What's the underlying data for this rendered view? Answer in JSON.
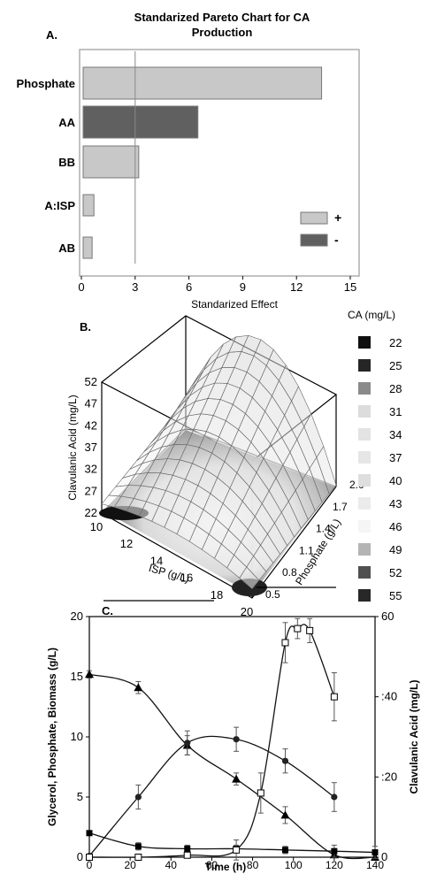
{
  "panels": {
    "a": {
      "letter": "A.",
      "chart_data": {
        "type": "bar",
        "orientation": "horizontal",
        "title": "Standarized Pareto Chart for CA Production",
        "title_lines": [
          "Standarized Pareto Chart for CA",
          "Production"
        ],
        "xlabel": "Standarized Effect",
        "xlim": [
          0,
          15
        ],
        "xticks": [
          "0",
          "3",
          "6",
          "9",
          "12",
          "15"
        ],
        "categories": [
          "Phosphate",
          "AA",
          "BB",
          "A:ISP",
          "AB"
        ],
        "values": [
          13.4,
          6.5,
          3.2,
          0.7,
          0.6
        ],
        "signs": [
          "+",
          "-",
          "+",
          "+",
          "+"
        ],
        "reference_line": 3.0,
        "legend": [
          {
            "label": "+",
            "color": "#c8c8c8"
          },
          {
            "label": "-",
            "color": "#606060"
          }
        ],
        "colors": {
          "positive": "#c8c8c8",
          "negative": "#606060"
        }
      }
    },
    "b": {
      "letter": "B.",
      "chart_data": {
        "type": "surface3d",
        "zlabel": "Clavulanic Acid (mg/L)",
        "xlabel": "ISP (g/L)",
        "ylabel": "Phosphate (g/L)",
        "zticks": [
          "22",
          "27",
          "32",
          "37",
          "42",
          "47",
          "52"
        ],
        "xticks": [
          "10",
          "12",
          "14",
          "16",
          "18",
          "20"
        ],
        "yticks": [
          "0.5",
          "0.8",
          "1.1",
          "1.4",
          "1.7",
          "2.0"
        ],
        "legend_title": "CA (mg/L)",
        "legend": [
          {
            "label": "22",
            "color": "#101010"
          },
          {
            "label": "25",
            "color": "#262626"
          },
          {
            "label": "28",
            "color": "#8a8a8a"
          },
          {
            "label": "31",
            "color": "#dcdcdc"
          },
          {
            "label": "34",
            "color": "#e3e3e3"
          },
          {
            "label": "37",
            "color": "#e6e6e6"
          },
          {
            "label": "40",
            "color": "#dedede"
          },
          {
            "label": "43",
            "color": "#ebebeb"
          },
          {
            "label": "46",
            "color": "#f5f5f5"
          },
          {
            "label": "49",
            "color": "#b4b4b4"
          },
          {
            "label": "52",
            "color": "#505050"
          },
          {
            "label": "55",
            "color": "#282828"
          }
        ]
      }
    },
    "c": {
      "letter": "C.",
      "chart_data": {
        "type": "line",
        "xlabel": "Time (h)",
        "ylabel": "Glycerol, Phosphate, Biomass (g/L)",
        "y2label": "Clavulanic Acid (mg/L)",
        "xlim": [
          0,
          140
        ],
        "ylim": [
          0,
          20
        ],
        "y2lim": [
          0,
          60
        ],
        "xticks": [
          "0",
          "20",
          "40",
          "60",
          "80",
          "100",
          "120",
          "140"
        ],
        "yticks": [
          "0",
          "5",
          "10",
          "15",
          "20"
        ],
        "y2ticks": [
          "0",
          ":20",
          ":40",
          "60"
        ],
        "series": [
          {
            "marker": "triangle",
            "axis": "left",
            "x": [
              0,
              24,
              48,
              72,
              96,
              120,
              144
            ],
            "y": [
              15.2,
              14.1,
              9.3,
              6.5,
              3.5,
              0.2,
              0.0
            ],
            "err": [
              0.3,
              0.5,
              0.8,
              0.5,
              0.7,
              0.2,
              0.0
            ]
          },
          {
            "marker": "circle",
            "axis": "left",
            "x": [
              0,
              24,
              48,
              72,
              96,
              120
            ],
            "y": [
              0.1,
              5.0,
              9.5,
              9.8,
              8.0,
              5.0
            ],
            "err": [
              0.0,
              1.0,
              1.0,
              1.0,
              1.0,
              1.2
            ]
          },
          {
            "marker": "square",
            "axis": "left",
            "x": [
              0,
              24,
              48,
              72,
              96,
              120,
              144
            ],
            "y": [
              2.0,
              0.9,
              0.7,
              0.7,
              0.6,
              0.5,
              0.4
            ],
            "err": [
              0.0,
              0.3,
              0.3,
              0.3,
              0.3,
              0.5,
              0.5
            ]
          },
          {
            "marker": "open-square",
            "axis": "right",
            "x": [
              0,
              24,
              48,
              72,
              84,
              96,
              102,
              108,
              120
            ],
            "y": [
              0.0,
              0.0,
              0.5,
              1.8,
              16.0,
              53.5,
              57.0,
              56.5,
              40.0
            ],
            "err": [
              0.0,
              0.0,
              0.5,
              2.5,
              5.0,
              5.0,
              2.5,
              3.0,
              6.0
            ]
          }
        ]
      }
    }
  }
}
